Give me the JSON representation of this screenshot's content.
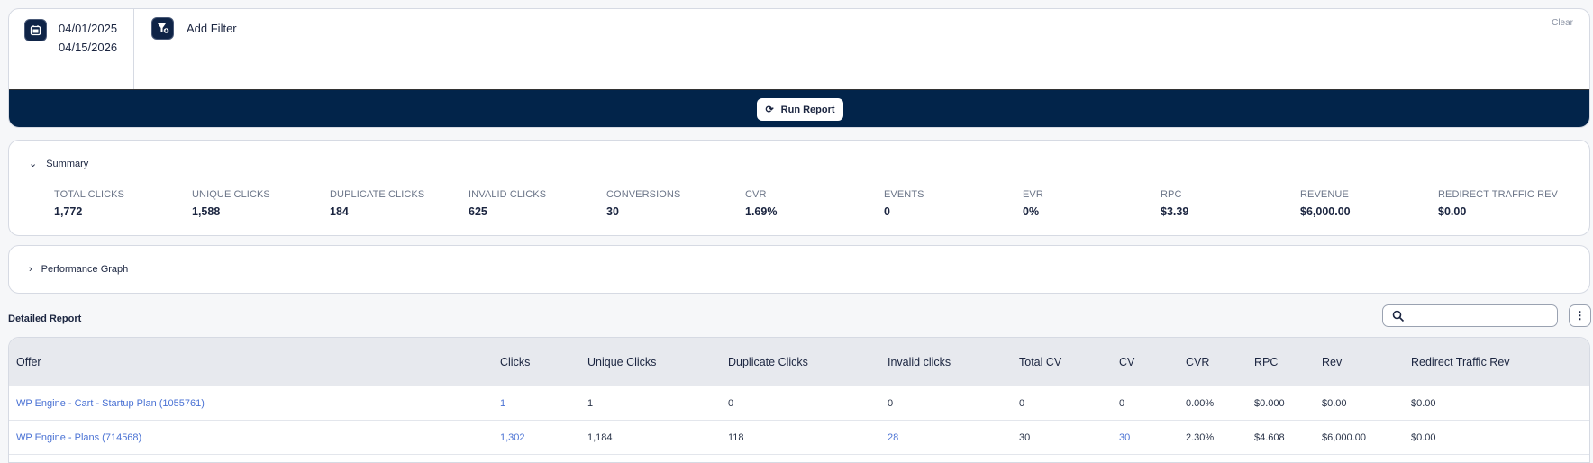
{
  "filter": {
    "start_date": "04/01/2025",
    "end_date": "04/15/2026",
    "add_filter": "Add Filter",
    "clear": "Clear",
    "run_report": "Run Report"
  },
  "summary": {
    "title": "Summary",
    "metrics": [
      {
        "label": "TOTAL CLICKS",
        "value": "1,772"
      },
      {
        "label": "UNIQUE CLICKS",
        "value": "1,588"
      },
      {
        "label": "DUPLICATE CLICKS",
        "value": "184"
      },
      {
        "label": "INVALID CLICKS",
        "value": "625"
      },
      {
        "label": "CONVERSIONS",
        "value": "30"
      },
      {
        "label": "CVR",
        "value": "1.69%"
      },
      {
        "label": "EVENTS",
        "value": "0"
      },
      {
        "label": "EVR",
        "value": "0%"
      },
      {
        "label": "RPC",
        "value": "$3.39"
      },
      {
        "label": "REVENUE",
        "value": "$6,000.00"
      },
      {
        "label": "REDIRECT TRAFFIC REV",
        "value": "$0.00"
      }
    ]
  },
  "performance": {
    "title": "Performance Graph"
  },
  "report": {
    "title": "Detailed Report",
    "search_placeholder": "",
    "columns": [
      "Offer",
      "Clicks",
      "Unique Clicks",
      "Duplicate Clicks",
      "Invalid clicks",
      "Total CV",
      "CV",
      "CVR",
      "RPC",
      "Rev",
      "Redirect Traffic Rev"
    ],
    "rows": [
      [
        "WP Engine - Cart - Startup Plan (1055761)",
        "1",
        "1",
        "0",
        "0",
        "0",
        "0",
        "0.00%",
        "$0.000",
        "$0.00",
        "$0.00"
      ],
      [
        "WP Engine - Plans (714568)",
        "1,302",
        "1,184",
        "118",
        "28",
        "30",
        "30",
        "2.30%",
        "$4.608",
        "$6,000.00",
        "$0.00"
      ]
    ]
  },
  "colors": {
    "navy": "#02244a",
    "link": "#4a72d4"
  }
}
